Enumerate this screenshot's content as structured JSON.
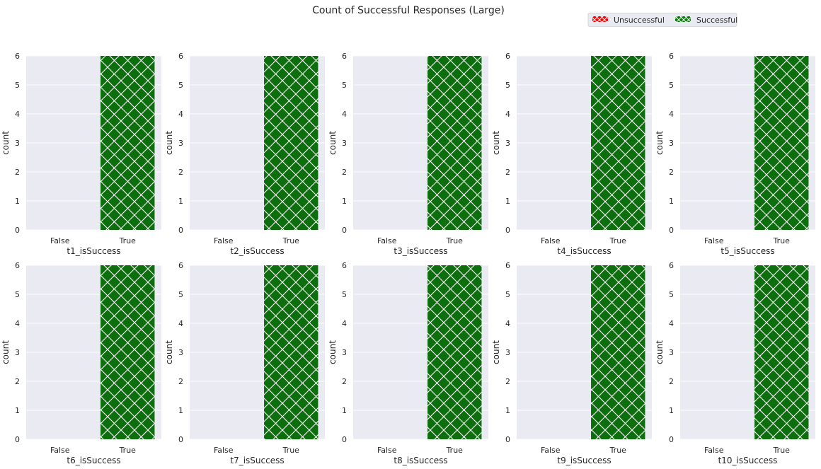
{
  "figure": {
    "title": "Count of Successful Responses (Large)"
  },
  "legend": {
    "placement": "top-right",
    "entries": [
      {
        "label": "Unsuccessful",
        "color": "#ff0000",
        "hatch": "x"
      },
      {
        "label": "Successful",
        "color": "#008000",
        "hatch": "x"
      }
    ]
  },
  "colors": {
    "axes_background": "#eaeaf2",
    "grid": "#ffffff",
    "unsuccessful": "#ff0000",
    "successful": "#0d6e0d",
    "hatch": "#ffffff"
  },
  "chart_data": [
    {
      "type": "bar",
      "categories": [
        "False",
        "True"
      ],
      "values": [
        0,
        6
      ],
      "xlabel": "t1_isSuccess",
      "ylabel": "count",
      "ylim": [
        0,
        6
      ],
      "yticks": [
        "0",
        "1",
        "2",
        "3",
        "4",
        "5",
        "6"
      ],
      "grid": true
    },
    {
      "type": "bar",
      "categories": [
        "False",
        "True"
      ],
      "values": [
        0,
        6
      ],
      "xlabel": "t2_isSuccess",
      "ylabel": "count",
      "ylim": [
        0,
        6
      ],
      "yticks": [
        "0",
        "1",
        "2",
        "3",
        "4",
        "5",
        "6"
      ],
      "grid": true
    },
    {
      "type": "bar",
      "categories": [
        "False",
        "True"
      ],
      "values": [
        0,
        6
      ],
      "xlabel": "t3_isSuccess",
      "ylabel": "count",
      "ylim": [
        0,
        6
      ],
      "yticks": [
        "0",
        "1",
        "2",
        "3",
        "4",
        "5",
        "6"
      ],
      "grid": true
    },
    {
      "type": "bar",
      "categories": [
        "False",
        "True"
      ],
      "values": [
        0,
        6
      ],
      "xlabel": "t4_isSuccess",
      "ylabel": "count",
      "ylim": [
        0,
        6
      ],
      "yticks": [
        "0",
        "1",
        "2",
        "3",
        "4",
        "5",
        "6"
      ],
      "grid": true
    },
    {
      "type": "bar",
      "categories": [
        "False",
        "True"
      ],
      "values": [
        0,
        6
      ],
      "xlabel": "t5_isSuccess",
      "ylabel": "count",
      "ylim": [
        0,
        6
      ],
      "yticks": [
        "0",
        "1",
        "2",
        "3",
        "4",
        "5",
        "6"
      ],
      "grid": true
    },
    {
      "type": "bar",
      "categories": [
        "False",
        "True"
      ],
      "values": [
        0,
        6
      ],
      "xlabel": "t6_isSuccess",
      "ylabel": "count",
      "ylim": [
        0,
        6
      ],
      "yticks": [
        "0",
        "1",
        "2",
        "3",
        "4",
        "5",
        "6"
      ],
      "grid": true
    },
    {
      "type": "bar",
      "categories": [
        "False",
        "True"
      ],
      "values": [
        0,
        6
      ],
      "xlabel": "t7_isSuccess",
      "ylabel": "count",
      "ylim": [
        0,
        6
      ],
      "yticks": [
        "0",
        "1",
        "2",
        "3",
        "4",
        "5",
        "6"
      ],
      "grid": true
    },
    {
      "type": "bar",
      "categories": [
        "False",
        "True"
      ],
      "values": [
        0,
        6
      ],
      "xlabel": "t8_isSuccess",
      "ylabel": "count",
      "ylim": [
        0,
        6
      ],
      "yticks": [
        "0",
        "1",
        "2",
        "3",
        "4",
        "5",
        "6"
      ],
      "grid": true
    },
    {
      "type": "bar",
      "categories": [
        "False",
        "True"
      ],
      "values": [
        0,
        6
      ],
      "xlabel": "t9_isSuccess",
      "ylabel": "count",
      "ylim": [
        0,
        6
      ],
      "yticks": [
        "0",
        "1",
        "2",
        "3",
        "4",
        "5",
        "6"
      ],
      "grid": true
    },
    {
      "type": "bar",
      "categories": [
        "False",
        "True"
      ],
      "values": [
        0,
        6
      ],
      "xlabel": "t10_isSuccess",
      "ylabel": "count",
      "ylim": [
        0,
        6
      ],
      "yticks": [
        "0",
        "1",
        "2",
        "3",
        "4",
        "5",
        "6"
      ],
      "grid": true
    }
  ]
}
